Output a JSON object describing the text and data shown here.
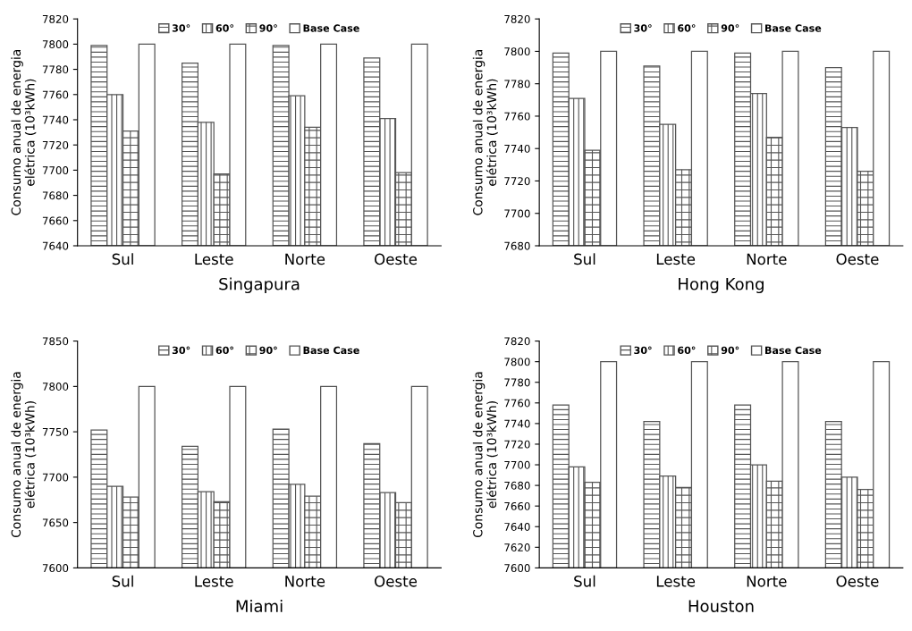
{
  "chart_data": [
    {
      "type": "bar",
      "xlabel": "Singapura",
      "ylabel": "Consumo anual de energia\nelétrica (10³kWh)",
      "categories": [
        "Sul",
        "Leste",
        "Norte",
        "Oeste"
      ],
      "ylim": [
        7640,
        7820
      ],
      "yticks": [
        7640,
        7660,
        7680,
        7700,
        7720,
        7740,
        7760,
        7780,
        7800,
        7820
      ],
      "legend": "top",
      "grid": false,
      "series": [
        {
          "name": "30°",
          "color": "#555555",
          "values": [
            7799,
            7785,
            7799,
            7789
          ]
        },
        {
          "name": "60°",
          "color": "#555555",
          "values": [
            7760,
            7738,
            7759,
            7741
          ]
        },
        {
          "name": "90°",
          "color": "#555555",
          "values": [
            7731,
            7697,
            7734,
            7698
          ]
        },
        {
          "name": "Base Case",
          "color": "#555555",
          "values": [
            7800,
            7800,
            7800,
            7800
          ]
        }
      ]
    },
    {
      "type": "bar",
      "xlabel": "Hong Kong",
      "ylabel": "Consumo anual de energia\nelétrica (10³kWh)",
      "categories": [
        "Sul",
        "Leste",
        "Norte",
        "Oeste"
      ],
      "ylim": [
        7680,
        7820
      ],
      "yticks": [
        7680,
        7700,
        7720,
        7740,
        7760,
        7780,
        7800,
        7820
      ],
      "legend": "top",
      "grid": false,
      "series": [
        {
          "name": "30°",
          "color": "#555555",
          "values": [
            7799,
            7791,
            7799,
            7790
          ]
        },
        {
          "name": "60°",
          "color": "#555555",
          "values": [
            7771,
            7755,
            7774,
            7753
          ]
        },
        {
          "name": "90°",
          "color": "#555555",
          "values": [
            7739,
            7727,
            7747,
            7726
          ]
        },
        {
          "name": "Base Case",
          "color": "#555555",
          "values": [
            7800,
            7800,
            7800,
            7800
          ]
        }
      ]
    },
    {
      "type": "bar",
      "xlabel": "Miami",
      "ylabel": "Consumo anual de energia\nelétrica (10³kWh)",
      "categories": [
        "Sul",
        "Leste",
        "Norte",
        "Oeste"
      ],
      "ylim": [
        7600,
        7850
      ],
      "yticks": [
        7600,
        7650,
        7700,
        7750,
        7800,
        7850
      ],
      "legend": "top",
      "grid": false,
      "series": [
        {
          "name": "30°",
          "color": "#555555",
          "values": [
            7752,
            7734,
            7753,
            7737
          ]
        },
        {
          "name": "60°",
          "color": "#555555",
          "values": [
            7690,
            7684,
            7692,
            7683
          ]
        },
        {
          "name": "90°",
          "color": "#555555",
          "values": [
            7678,
            7673,
            7679,
            7672
          ]
        },
        {
          "name": "Base Case",
          "color": "#555555",
          "values": [
            7800,
            7800,
            7800,
            7800
          ]
        }
      ]
    },
    {
      "type": "bar",
      "xlabel": "Houston",
      "ylabel": "Consumo anual de energia\nelétrica (10³kWh)",
      "categories": [
        "Sul",
        "Leste",
        "Norte",
        "Oeste"
      ],
      "ylim": [
        7600,
        7820
      ],
      "yticks": [
        7600,
        7620,
        7640,
        7660,
        7680,
        7700,
        7720,
        7740,
        7760,
        7780,
        7800,
        7820
      ],
      "legend": "top",
      "grid": false,
      "series": [
        {
          "name": "30°",
          "color": "#555555",
          "values": [
            7758,
            7742,
            7758,
            7742
          ]
        },
        {
          "name": "60°",
          "color": "#555555",
          "values": [
            7698,
            7689,
            7700,
            7688
          ]
        },
        {
          "name": "90°",
          "color": "#555555",
          "values": [
            7683,
            7678,
            7684,
            7676
          ]
        },
        {
          "name": "Base Case",
          "color": "#555555",
          "values": [
            7800,
            7800,
            7800,
            7800
          ]
        }
      ]
    }
  ]
}
